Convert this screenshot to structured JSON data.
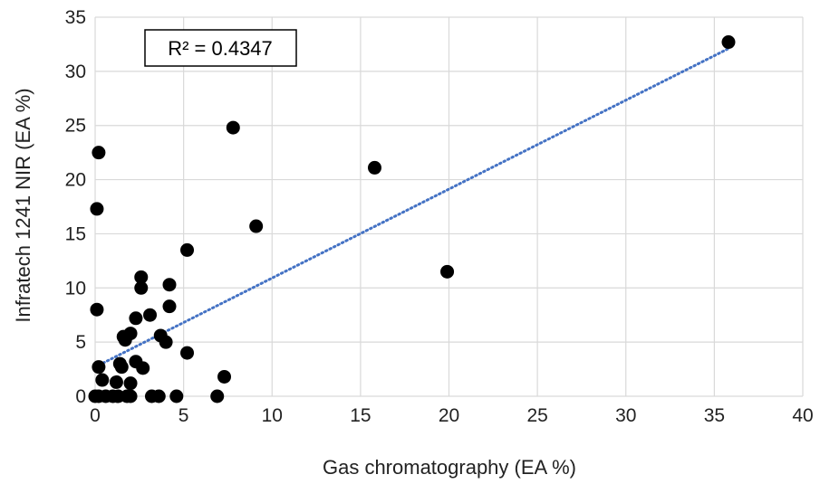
{
  "chart_data": {
    "type": "scatter",
    "title": "",
    "xlabel": "Gas chromatography  (EA %)",
    "ylabel": "Infratech 1241 NIR (EA %)",
    "xlim": [
      0,
      40
    ],
    "ylim": [
      0,
      35
    ],
    "x_ticks": [
      "0",
      "5",
      "10",
      "15",
      "20",
      "25",
      "30",
      "35",
      "40"
    ],
    "y_ticks": [
      "0",
      "5",
      "10",
      "15",
      "20",
      "25",
      "30",
      "35"
    ],
    "grid": true,
    "legend": "none",
    "trendline": {
      "type": "linear",
      "style": "dotted",
      "color": "#4472C4",
      "x_start": 0,
      "y_start": 2.7,
      "x_end": 35.8,
      "y_end": 32.1
    },
    "annotation": "R² = 0.4347",
    "point_color": "#000000",
    "series": [
      {
        "x": [
          35.8,
          7.8,
          0.2,
          15.8,
          0.1,
          9.1,
          19.9,
          5.2,
          2.6,
          2.6,
          4.2,
          4.2,
          0.1,
          2.3,
          3.1,
          2.0,
          1.6,
          1.7,
          3.7,
          4.0,
          5.2,
          0.2,
          2.3,
          1.4,
          1.5,
          2.7,
          7.3,
          0.4,
          1.2,
          2.0,
          0.0,
          0.2,
          0.6,
          1.0,
          1.3,
          1.8,
          2.0,
          3.2,
          3.6,
          4.6,
          6.9
        ],
        "y": [
          32.7,
          24.8,
          22.5,
          21.1,
          17.3,
          15.7,
          11.5,
          13.5,
          11.0,
          10.0,
          10.3,
          8.3,
          8.0,
          7.2,
          7.5,
          5.8,
          5.5,
          5.2,
          5.6,
          5.0,
          4.0,
          2.7,
          3.2,
          3.0,
          2.7,
          2.6,
          1.8,
          1.5,
          1.3,
          1.2,
          0.0,
          0.0,
          0.0,
          0.0,
          0.0,
          0.0,
          0.0,
          0.0,
          0.0,
          0.0,
          0.0
        ]
      }
    ]
  }
}
